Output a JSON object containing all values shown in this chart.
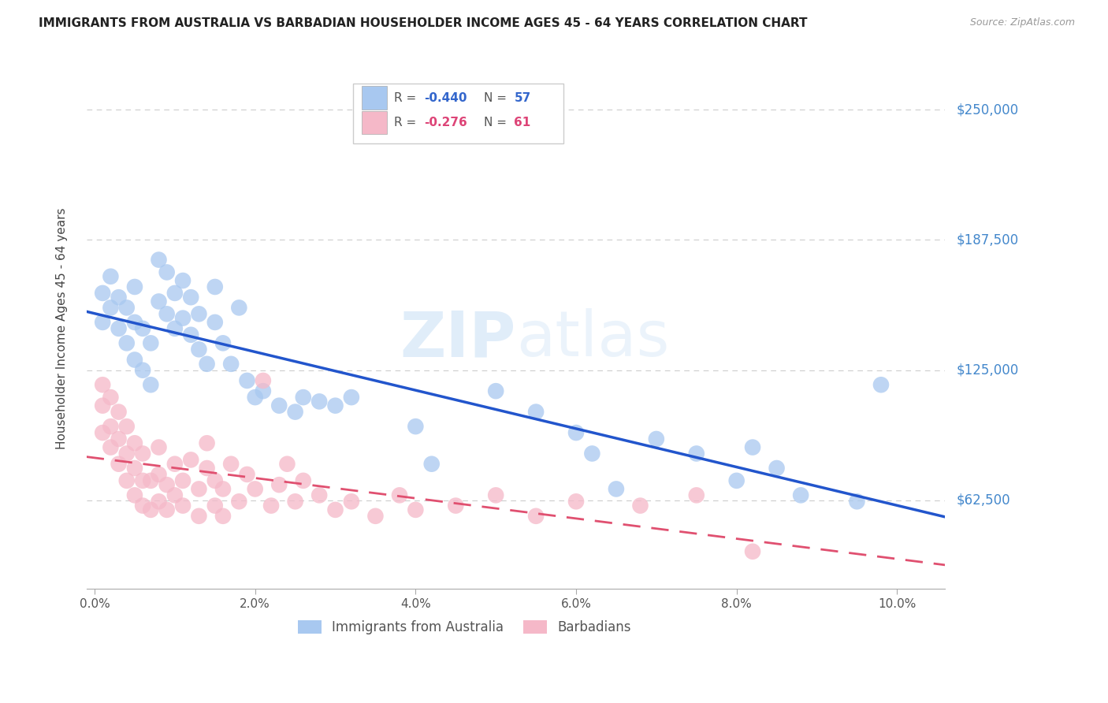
{
  "title": "IMMIGRANTS FROM AUSTRALIA VS BARBADIAN HOUSEHOLDER INCOME AGES 45 - 64 YEARS CORRELATION CHART",
  "source": "Source: ZipAtlas.com",
  "xlabel_ticks": [
    "0.0%",
    "2.0%",
    "4.0%",
    "6.0%",
    "8.0%",
    "10.0%"
  ],
  "xlabel_values": [
    0.0,
    0.02,
    0.04,
    0.06,
    0.08,
    0.1
  ],
  "ylabel_ticks": [
    "$62,500",
    "$125,000",
    "$187,500",
    "$250,000"
  ],
  "ylabel_values": [
    62500,
    125000,
    187500,
    250000
  ],
  "ylabel_label": "Householder Income Ages 45 - 64 years",
  "xlim": [
    -0.001,
    0.106
  ],
  "ylim": [
    20000,
    270000
  ],
  "r_australia": -0.44,
  "n_australia": 57,
  "r_barbadian": -0.276,
  "n_barbadian": 61,
  "australia_color": "#a8c8f0",
  "barbadian_color": "#f5b8c8",
  "australia_line_color": "#2255cc",
  "barbadian_line_color": "#e05070",
  "watermark": "ZIPatlas",
  "background_color": "#ffffff",
  "grid_color": "#cccccc",
  "legend_label_australia": "Immigrants from Australia",
  "legend_label_barbadian": "Barbadians",
  "australia_x": [
    0.001,
    0.001,
    0.002,
    0.002,
    0.003,
    0.003,
    0.004,
    0.004,
    0.005,
    0.005,
    0.005,
    0.006,
    0.006,
    0.007,
    0.007,
    0.008,
    0.008,
    0.009,
    0.009,
    0.01,
    0.01,
    0.011,
    0.011,
    0.012,
    0.012,
    0.013,
    0.013,
    0.014,
    0.015,
    0.015,
    0.016,
    0.017,
    0.018,
    0.019,
    0.02,
    0.021,
    0.023,
    0.025,
    0.026,
    0.028,
    0.03,
    0.032,
    0.04,
    0.042,
    0.05,
    0.055,
    0.06,
    0.062,
    0.065,
    0.07,
    0.075,
    0.08,
    0.082,
    0.085,
    0.088,
    0.095,
    0.098
  ],
  "australia_y": [
    148000,
    162000,
    155000,
    170000,
    145000,
    160000,
    138000,
    155000,
    130000,
    148000,
    165000,
    125000,
    145000,
    118000,
    138000,
    158000,
    178000,
    152000,
    172000,
    145000,
    162000,
    150000,
    168000,
    142000,
    160000,
    135000,
    152000,
    128000,
    148000,
    165000,
    138000,
    128000,
    155000,
    120000,
    112000,
    115000,
    108000,
    105000,
    112000,
    110000,
    108000,
    112000,
    98000,
    80000,
    115000,
    105000,
    95000,
    85000,
    68000,
    92000,
    85000,
    72000,
    88000,
    78000,
    65000,
    62000,
    118000
  ],
  "barbadian_x": [
    0.001,
    0.001,
    0.001,
    0.002,
    0.002,
    0.002,
    0.003,
    0.003,
    0.003,
    0.004,
    0.004,
    0.004,
    0.005,
    0.005,
    0.005,
    0.006,
    0.006,
    0.006,
    0.007,
    0.007,
    0.008,
    0.008,
    0.008,
    0.009,
    0.009,
    0.01,
    0.01,
    0.011,
    0.011,
    0.012,
    0.013,
    0.013,
    0.014,
    0.014,
    0.015,
    0.015,
    0.016,
    0.016,
    0.017,
    0.018,
    0.019,
    0.02,
    0.021,
    0.022,
    0.023,
    0.024,
    0.025,
    0.026,
    0.028,
    0.03,
    0.032,
    0.035,
    0.038,
    0.04,
    0.045,
    0.05,
    0.055,
    0.06,
    0.068,
    0.075,
    0.082
  ],
  "barbadian_y": [
    95000,
    108000,
    118000,
    88000,
    98000,
    112000,
    80000,
    92000,
    105000,
    72000,
    85000,
    98000,
    65000,
    78000,
    90000,
    60000,
    72000,
    85000,
    58000,
    72000,
    62000,
    75000,
    88000,
    58000,
    70000,
    65000,
    80000,
    60000,
    72000,
    82000,
    55000,
    68000,
    78000,
    90000,
    60000,
    72000,
    55000,
    68000,
    80000,
    62000,
    75000,
    68000,
    120000,
    60000,
    70000,
    80000,
    62000,
    72000,
    65000,
    58000,
    62000,
    55000,
    65000,
    58000,
    60000,
    65000,
    55000,
    62000,
    60000,
    65000,
    38000
  ]
}
